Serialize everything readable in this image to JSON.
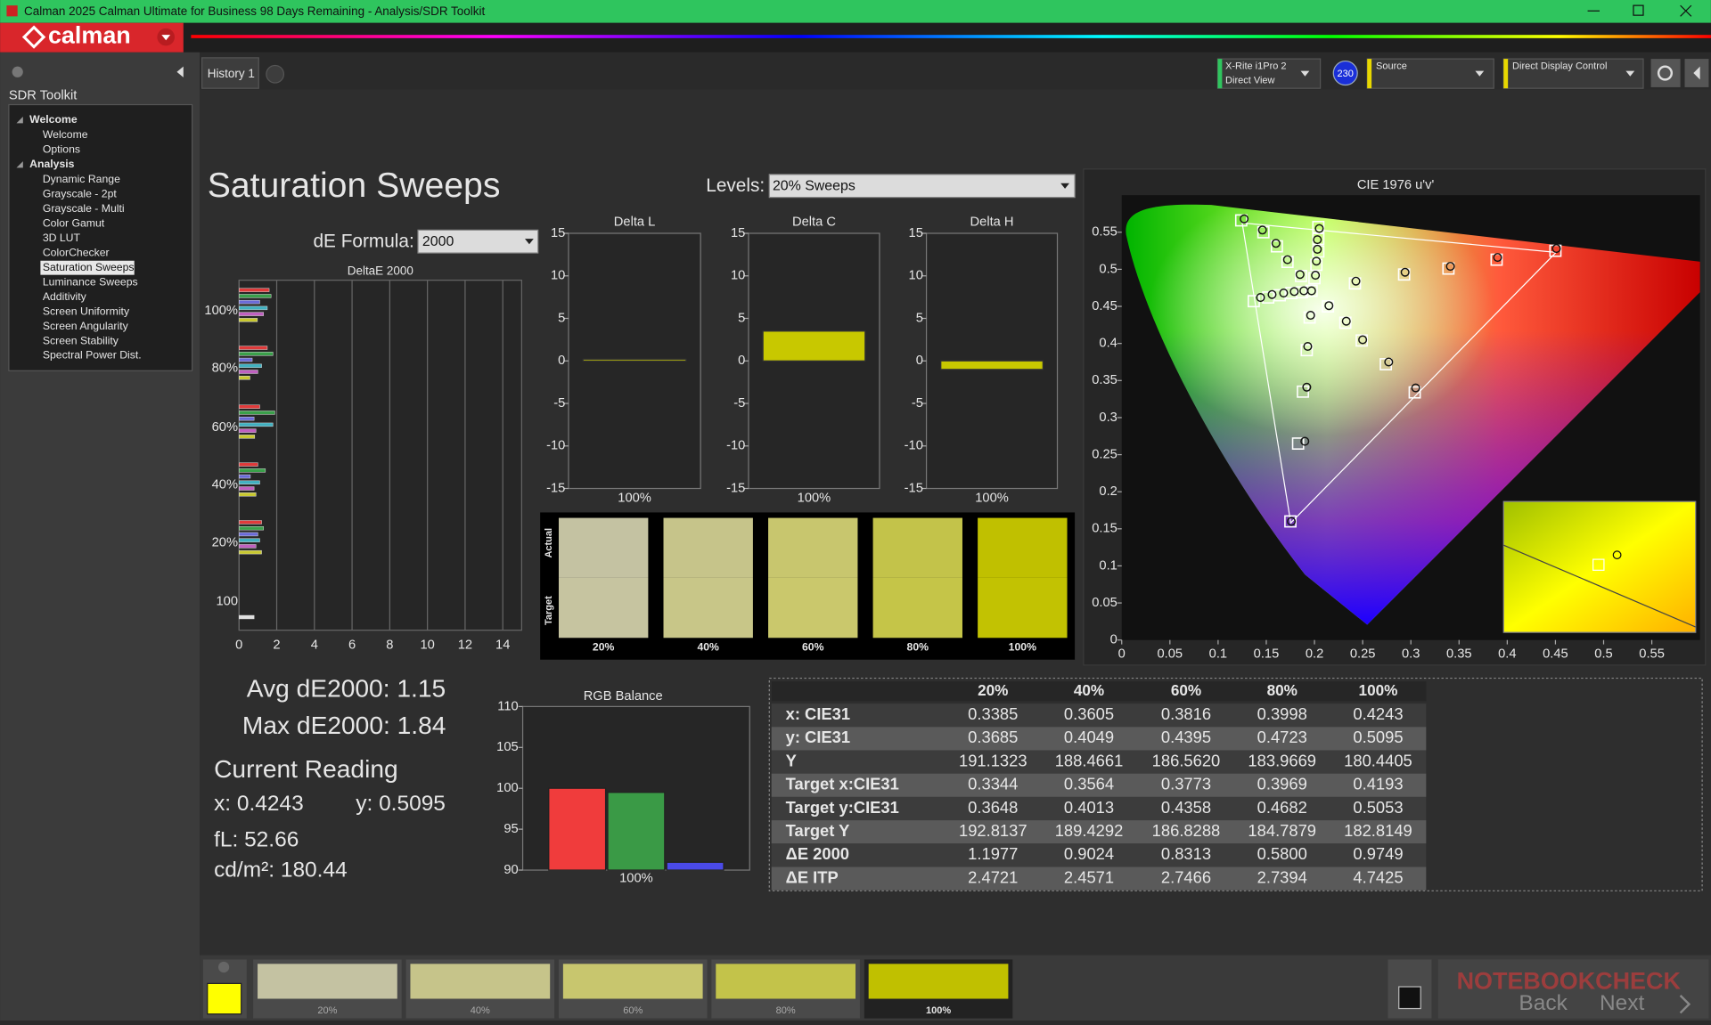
{
  "window": {
    "title": "Calman 2025 Calman Ultimate for Business 98 Days Remaining  - Analysis/SDR Toolkit"
  },
  "app": {
    "logo": "calman"
  },
  "sidebar": {
    "heading": "SDR Toolkit",
    "tree": [
      {
        "label": "Welcome",
        "items": [
          "Welcome",
          "Options"
        ]
      },
      {
        "label": "Analysis",
        "items": [
          "Dynamic Range",
          "Grayscale - 2pt",
          "Grayscale - Multi",
          "Color Gamut",
          "3D LUT",
          "ColorChecker",
          "Saturation Sweeps",
          "Luminance Sweeps",
          "Additivity",
          "Screen Uniformity",
          "Screen Angularity",
          "Screen Stability",
          "Spectral Power Dist."
        ]
      }
    ],
    "selected": [
      1,
      6
    ]
  },
  "tabs": [
    "History 1"
  ],
  "toolbar": {
    "meter": [
      "X-Rite i1Pro 2",
      "Direct View"
    ],
    "meter_badge": "230",
    "source": "Source",
    "display": "Direct Display Control"
  },
  "page": {
    "title": "Saturation Sweeps",
    "levels_label": "Levels:",
    "levels_value": "20% Sweeps",
    "formula_label": "dE Formula:",
    "formula_value": "2000"
  },
  "deltae": {
    "type": "bar",
    "orientation": "horizontal",
    "title": "DeltaE 2000",
    "categories": [
      "100%",
      "80%",
      "60%",
      "40%",
      "20%",
      "100"
    ],
    "xlim": [
      0,
      15
    ],
    "xticks": [
      0,
      2,
      4,
      6,
      8,
      10,
      12,
      14
    ],
    "grid": true,
    "series": [
      {
        "color": "#e03a3a",
        "values": [
          1.6,
          1.5,
          1.1,
          1.0,
          1.2,
          null
        ]
      },
      {
        "color": "#3aa04a",
        "values": [
          1.7,
          1.8,
          1.9,
          1.4,
          1.3,
          null
        ]
      },
      {
        "color": "#6a6ad8",
        "values": [
          1.1,
          0.7,
          0.8,
          0.6,
          1.0,
          null
        ]
      },
      {
        "color": "#40b0c0",
        "values": [
          1.5,
          1.2,
          1.8,
          1.1,
          1.1,
          null
        ]
      },
      {
        "color": "#c060c0",
        "values": [
          1.3,
          1.0,
          0.9,
          0.8,
          0.9,
          null
        ]
      },
      {
        "color": "#c8c830",
        "values": [
          0.9749,
          0.58,
          0.8313,
          0.9024,
          1.1977,
          null
        ]
      },
      {
        "color": "#e0e0e0",
        "values": [
          null,
          null,
          null,
          null,
          null,
          0.8
        ]
      }
    ]
  },
  "delta_charts": [
    {
      "type": "bar",
      "title": "Delta L",
      "categories": [
        "100%"
      ],
      "values": [
        0.2
      ],
      "color": "#c8c800",
      "ylim": [
        -15,
        15
      ],
      "yticks": [
        -15,
        -10,
        -5,
        0,
        5,
        10,
        15
      ]
    },
    {
      "type": "bar",
      "title": "Delta C",
      "categories": [
        "100%"
      ],
      "values": [
        3.5
      ],
      "color": "#c8c800",
      "ylim": [
        -15,
        15
      ],
      "yticks": [
        -15,
        -10,
        -5,
        0,
        5,
        10,
        15
      ]
    },
    {
      "type": "bar",
      "title": "Delta H",
      "categories": [
        "100%"
      ],
      "values": [
        -1.0
      ],
      "color": "#c8c800",
      "ylim": [
        -15,
        15
      ],
      "yticks": [
        -15,
        -10,
        -5,
        0,
        5,
        10,
        15
      ]
    }
  ],
  "swatches": {
    "actual_label": "Actual",
    "target_label": "Target",
    "levels": [
      "20%",
      "40%",
      "60%",
      "80%",
      "100%"
    ],
    "actual_colors": [
      "#c4c2a2",
      "#c6c48a",
      "#c8c66e",
      "#c3c34a",
      "#c0c000"
    ],
    "target_colors": [
      "#c6c4a0",
      "#c8c688",
      "#cac86c",
      "#c5c548",
      "#c2c202"
    ]
  },
  "stats": {
    "avg": "Avg dE2000: 1.15",
    "max": "Max dE2000: 1.84",
    "reading_title": "Current Reading",
    "x": "x: 0.4243",
    "y": "y: 0.5095",
    "fl": "fL: 52.66",
    "cdm2": "cd/m²: 180.44"
  },
  "rgb_balance": {
    "type": "bar",
    "title": "RGB Balance",
    "categories": [
      "100%"
    ],
    "series": [
      {
        "color": "#f03c3c",
        "values": [
          100.0
        ]
      },
      {
        "color": "#3a9a46",
        "values": [
          99.5
        ]
      },
      {
        "color": "#4a4ae8",
        "values": [
          90.95
        ]
      }
    ],
    "ylim": [
      90,
      110
    ],
    "yticks": [
      90,
      95,
      100,
      105,
      110
    ]
  },
  "cie": {
    "type": "scatter",
    "title": "CIE 1976 u'v'",
    "xlim": [
      0,
      0.6
    ],
    "ylim": [
      0,
      0.6
    ],
    "xticks": [
      0,
      0.05,
      0.1,
      0.15,
      0.2,
      0.25,
      0.3,
      0.35,
      0.4,
      0.45,
      0.5,
      0.55
    ],
    "yticks": [
      0,
      0.05,
      0.1,
      0.15,
      0.2,
      0.25,
      0.3,
      0.35,
      0.4,
      0.45,
      0.5,
      0.55
    ],
    "gamut": {
      "u": [
        0.4507,
        0.125,
        0.1754
      ],
      "v": [
        0.5229,
        0.5625,
        0.1579
      ]
    },
    "targets": {
      "u": [
        0.45,
        0.389,
        0.339,
        0.293,
        0.242,
        0.197,
        0.124,
        0.147,
        0.161,
        0.172,
        0.186,
        0.175,
        0.183,
        0.188,
        0.192,
        0.195,
        0.137,
        0.152,
        0.164,
        0.176,
        0.187,
        0.304,
        0.274,
        0.249,
        0.232,
        0.214,
        0.204,
        0.204,
        0.204,
        0.202,
        0.2
      ],
      "v": [
        0.525,
        0.513,
        0.501,
        0.493,
        0.481,
        0.471,
        0.566,
        0.55,
        0.531,
        0.51,
        0.491,
        0.16,
        0.265,
        0.335,
        0.391,
        0.435,
        0.457,
        0.462,
        0.465,
        0.468,
        0.469,
        0.334,
        0.372,
        0.404,
        0.428,
        0.45,
        0.557,
        0.541,
        0.524,
        0.506,
        0.488
      ]
    },
    "measured": {
      "u": [
        0.451,
        0.39,
        0.341,
        0.294,
        0.243,
        0.197,
        0.127,
        0.146,
        0.16,
        0.172,
        0.185,
        0.176,
        0.19,
        0.192,
        0.193,
        0.196,
        0.144,
        0.156,
        0.168,
        0.179,
        0.189,
        0.305,
        0.277,
        0.25,
        0.233,
        0.215,
        0.205,
        0.203,
        0.203,
        0.202,
        0.201
      ],
      "v": [
        0.528,
        0.516,
        0.504,
        0.496,
        0.484,
        0.471,
        0.568,
        0.553,
        0.535,
        0.513,
        0.493,
        0.16,
        0.268,
        0.341,
        0.396,
        0.438,
        0.462,
        0.466,
        0.468,
        0.47,
        0.471,
        0.34,
        0.375,
        0.405,
        0.43,
        0.451,
        0.555,
        0.54,
        0.527,
        0.511,
        0.492
      ]
    }
  },
  "table": {
    "header": [
      "20%",
      "40%",
      "60%",
      "80%",
      "100%"
    ],
    "rows": [
      [
        "x: CIE31",
        "0.3385",
        "0.3605",
        "0.3816",
        "0.3998",
        "0.4243"
      ],
      [
        "y: CIE31",
        "0.3685",
        "0.4049",
        "0.4395",
        "0.4723",
        "0.5095"
      ],
      [
        "Y",
        "191.1323",
        "188.4661",
        "186.5620",
        "183.9669",
        "180.4405"
      ],
      [
        "Target x:CIE31",
        "0.3344",
        "0.3564",
        "0.3773",
        "0.3969",
        "0.4193"
      ],
      [
        "Target y:CIE31",
        "0.3648",
        "0.4013",
        "0.4358",
        "0.4682",
        "0.5053"
      ],
      [
        "Target Y",
        "192.8137",
        "189.4292",
        "186.8288",
        "184.7879",
        "182.8149"
      ],
      [
        "ΔE 2000",
        "1.1977",
        "0.9024",
        "0.8313",
        "0.5800",
        "0.9749"
      ],
      [
        "ΔE ITP",
        "2.4721",
        "2.4571",
        "2.7466",
        "2.7394",
        "4.7425"
      ]
    ]
  },
  "strip": {
    "selected": 4,
    "current_color": "#ffff00"
  },
  "nav": {
    "back": "Back",
    "next": "Next",
    "watermark": "NOTEBOOKCHECK"
  }
}
